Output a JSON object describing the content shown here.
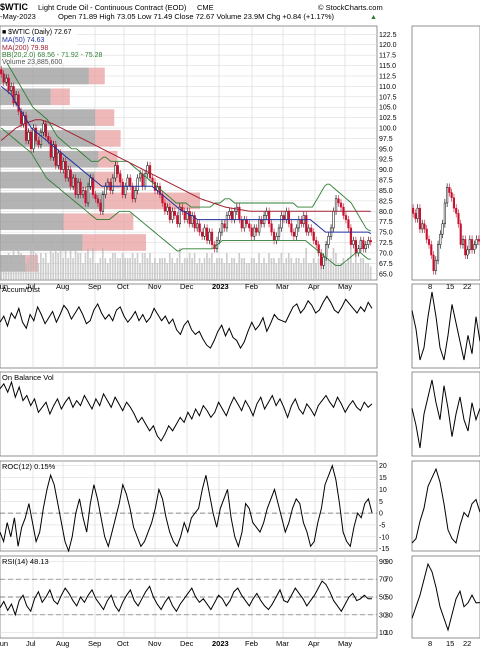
{
  "header": {
    "title_symbol": "$WTIC",
    "title_desc": "Light Crude Oil - Continuous Contract (EOD)",
    "exchange": "CME",
    "watermark": "© StockCharts.com",
    "date": "-May-2023",
    "ohlc": "Open 71.89  High 73.05  Low 71.49  Close 72.67  Volume 23.9M  Chg +0.84 (+1.17%)",
    "last_change": "▲"
  },
  "legend": {
    "price": "■ $WTIC (Daily) 72.67",
    "ma50": "MA(50) 74.63",
    "ma200": "MA(200) 79.98",
    "bb": "BB(20,2.0) 68.56 - 71.92 - 75.28",
    "volume": "Volume 23,885,600"
  },
  "panel_titles": {
    "accdist": "Accum/Dist",
    "obv": "On Balance Vol",
    "roc": "ROC(12) 0.15%",
    "rsi": "RSI(14) 48.13"
  },
  "colors": {
    "up": "#000000",
    "down": "#c8102e",
    "ma50": "#1f2fa0",
    "ma200": "#a02030",
    "bb": "#2e7d32",
    "volume": "#b8b8b8",
    "volume_by_price_up": "#9a9a9a",
    "volume_by_price_down": "#e8a0a0",
    "grid": "#d6d6d6"
  },
  "chart_data": [
    {
      "type": "candlestick",
      "title": "$WTIC Light Crude Oil - Continuous Contract (EOD)",
      "x_ticks": [
        "Jul",
        "Aug",
        "Sep",
        "Oct",
        "Nov",
        "Dec",
        "2023",
        "Feb",
        "Mar",
        "Apr",
        "May"
      ],
      "y_ticks": [
        65.0,
        67.5,
        70.0,
        72.5,
        75.0,
        77.5,
        80.0,
        82.5,
        85.0,
        87.5,
        90.0,
        92.5,
        95.0,
        97.5,
        100.0,
        102.5,
        105.0,
        107.5,
        110.0,
        112.5,
        115.0,
        117.5,
        120.0,
        122.5
      ],
      "ylim": [
        63.5,
        124.5
      ],
      "close": [
        113,
        111,
        112,
        109,
        110,
        106,
        108,
        104,
        101,
        103,
        97,
        99,
        95,
        100,
        97,
        96,
        99,
        101,
        98,
        97,
        93,
        96,
        91,
        94,
        90,
        92,
        88,
        90,
        86,
        88,
        84,
        87,
        84,
        85,
        82,
        86,
        88,
        84,
        83,
        82,
        80,
        84,
        86,
        87,
        85,
        88,
        91,
        89,
        87,
        84,
        86,
        88,
        86,
        83,
        85,
        88,
        89,
        86,
        89,
        91,
        88,
        87,
        85,
        86,
        84,
        82,
        80,
        81,
        78,
        80,
        79,
        77,
        81,
        80,
        78,
        80,
        77,
        79,
        76,
        77,
        75,
        74,
        76,
        73,
        75,
        72,
        71,
        73,
        75,
        77,
        76,
        79,
        80,
        78,
        80,
        81,
        78,
        76,
        78,
        77,
        76,
        74,
        76,
        75,
        78,
        77,
        79,
        80,
        77,
        75,
        73,
        74,
        76,
        79,
        78,
        80,
        77,
        75,
        74,
        76,
        78,
        77,
        79,
        75,
        76,
        75,
        73,
        72,
        70,
        67,
        69,
        72,
        74,
        76,
        80,
        83,
        82,
        81,
        79,
        78,
        76,
        72,
        73,
        70,
        71,
        73,
        71,
        72,
        73,
        72.67
      ],
      "ma50": [
        110,
        109.5,
        109,
        108.5,
        108,
        107,
        106,
        105,
        104,
        103,
        102,
        101,
        100,
        99.5,
        99,
        98.5,
        98,
        97.5,
        97,
        96.5,
        96,
        95.5,
        95,
        94.5,
        94,
        93.5,
        93,
        92.5,
        92,
        91.5,
        91,
        90.5,
        90,
        89.5,
        89,
        88.5,
        88,
        87.5,
        87,
        86.5,
        86,
        86,
        86,
        86,
        86,
        86,
        86,
        86,
        86,
        86,
        86,
        86,
        86,
        86,
        86,
        86,
        86,
        86,
        86,
        86,
        86,
        85.5,
        85,
        84.5,
        84,
        83.5,
        83,
        82.5,
        82,
        81.5,
        81,
        80.5,
        80,
        80,
        79.5,
        79,
        79,
        78.5,
        78,
        78,
        78,
        78,
        78,
        78,
        78,
        78,
        78,
        78,
        78,
        78,
        78,
        78,
        78,
        78,
        78,
        78,
        78,
        78,
        78,
        78,
        78,
        78,
        78,
        78,
        78,
        78,
        78,
        78,
        78,
        78,
        78,
        78,
        78,
        78,
        78,
        78,
        78,
        78,
        78,
        78,
        78,
        78,
        78,
        78,
        77.5,
        77,
        76.5,
        76,
        75.5,
        75,
        75,
        75,
        75,
        75,
        75,
        75,
        75,
        75,
        75,
        75,
        75,
        75,
        75,
        75,
        75,
        75,
        75,
        74.63
      ],
      "ma200": [
        97,
        97.5,
        98,
        98.5,
        99,
        99.5,
        100,
        100.3,
        100.6,
        100.9,
        101.2,
        101.4,
        101.6,
        101.8,
        102,
        102,
        102,
        101.8,
        101.6,
        101.4,
        101.2,
        101,
        100.7,
        100.4,
        100.1,
        99.8,
        99.5,
        99.2,
        98.9,
        98.6,
        98.3,
        98,
        97.7,
        97.4,
        97.1,
        96.8,
        96.5,
        96.2,
        95.9,
        95.6,
        95.3,
        95,
        94.7,
        94.4,
        94.1,
        93.8,
        93.5,
        93.2,
        92.9,
        92.6,
        92.3,
        92,
        91.7,
        91.4,
        91.1,
        90.8,
        90.5,
        90.2,
        89.9,
        89.6,
        89.3,
        89,
        88.7,
        88.4,
        88.1,
        87.8,
        87.5,
        87.2,
        86.9,
        86.6,
        86.3,
        86,
        85.7,
        85.4,
        85.1,
        84.8,
        84.5,
        84.2,
        83.9,
        83.6,
        83.3,
        83,
        82.8,
        82.6,
        82.4,
        82.2,
        82,
        81.8,
        81.6,
        81.4,
        81.2,
        81,
        80.9,
        80.8,
        80.7,
        80.6,
        80.5,
        80.4,
        80.3,
        80.2,
        80.1,
        80,
        80,
        80,
        80,
        80,
        80,
        80,
        80,
        80,
        80,
        80,
        80,
        80,
        80,
        80,
        80,
        80,
        80,
        80,
        80,
        80,
        80,
        80,
        80,
        80,
        80,
        80,
        80,
        80,
        80,
        80,
        80,
        80,
        80,
        80,
        80,
        80,
        80,
        80,
        80,
        80,
        80,
        80,
        80,
        80,
        80,
        80,
        80,
        80,
        79.98
      ],
      "bb_upper": [
        118,
        117,
        116,
        115,
        114,
        113,
        112,
        111,
        110,
        109,
        108,
        107,
        106,
        105,
        104.5,
        104,
        103.5,
        103,
        102.5,
        102,
        101,
        100,
        99,
        98,
        97.5,
        97,
        96.5,
        96,
        95.5,
        95,
        95,
        95,
        94.5,
        94,
        93.5,
        93,
        92.5,
        92,
        92,
        92,
        92,
        92.5,
        93,
        93,
        92.5,
        92,
        92,
        92,
        92,
        92,
        92,
        92,
        92,
        91.5,
        91,
        90.5,
        90,
        89.5,
        89,
        88.5,
        88,
        87.5,
        87,
        86.5,
        86,
        85.5,
        85,
        84.5,
        84,
        83.5,
        83,
        82.5,
        82,
        82,
        82,
        82,
        82,
        81.5,
        81,
        81,
        81,
        81,
        81,
        81,
        81,
        81,
        81,
        81.5,
        82,
        82,
        82,
        82.5,
        83,
        83,
        83,
        82.5,
        82,
        82,
        82,
        82,
        82,
        82,
        82,
        82,
        82,
        82,
        82,
        82,
        82,
        82,
        82,
        82,
        82,
        82,
        82,
        82,
        82,
        82,
        82,
        82,
        82,
        81.5,
        81,
        81,
        81,
        81,
        81,
        81,
        81,
        82,
        83,
        84,
        85,
        86,
        86.5,
        86.5,
        86,
        85.5,
        85,
        84.5,
        84,
        83.5,
        83,
        82.5,
        82,
        81,
        80,
        79,
        78,
        77,
        76,
        75.5,
        75.28
      ],
      "bb_lower": [
        100,
        99.5,
        99,
        98.5,
        98,
        97.5,
        97,
        96.5,
        96,
        95.5,
        95,
        94.5,
        94,
        93,
        92,
        91,
        90,
        89,
        88,
        87.5,
        87,
        86.5,
        86,
        85.5,
        85,
        84.5,
        84,
        83.5,
        83,
        82.5,
        82,
        81.5,
        81,
        80.5,
        80,
        79.5,
        79,
        78.5,
        78,
        78,
        78,
        78,
        78,
        78,
        78.5,
        79,
        79.5,
        80,
        80,
        80,
        80,
        80,
        79.5,
        79,
        78.5,
        78,
        77.5,
        77,
        76.5,
        76,
        75.5,
        75,
        74.5,
        74,
        73.5,
        73,
        72.5,
        72,
        71.5,
        71,
        70.5,
        70.5,
        71,
        71,
        71,
        71,
        71,
        71,
        71,
        71,
        71,
        71,
        71,
        71,
        71,
        71.5,
        72,
        72.5,
        73,
        73,
        73,
        73,
        73,
        73,
        73,
        73,
        73,
        73,
        73,
        73,
        73,
        73,
        73,
        73,
        73,
        73,
        73,
        73,
        73,
        73,
        73,
        73,
        73,
        73,
        73,
        73,
        73,
        73,
        73,
        73,
        73,
        73,
        72.5,
        72,
        71.5,
        71,
        70.5,
        70,
        69.5,
        69,
        68.5,
        68,
        67.5,
        67,
        67,
        67,
        67.5,
        68,
        68.5,
        69,
        69.5,
        70,
        70,
        70,
        69.5,
        69,
        68.5,
        68.56
      ],
      "volume_by_price": [
        {
          "price_from": 110,
          "price_to": 115,
          "up": 140,
          "down": 25
        },
        {
          "price_from": 105,
          "price_to": 110,
          "up": 80,
          "down": 30
        },
        {
          "price_from": 100,
          "price_to": 105,
          "up": 150,
          "down": 30
        },
        {
          "price_from": 95,
          "price_to": 100,
          "up": 150,
          "down": 40
        },
        {
          "price_from": 90,
          "price_to": 95,
          "up": 155,
          "down": 30
        },
        {
          "price_from": 85,
          "price_to": 90,
          "up": 150,
          "down": 40
        },
        {
          "price_from": 80,
          "price_to": 85,
          "up": 165,
          "down": 150
        },
        {
          "price_from": 75,
          "price_to": 80,
          "up": 100,
          "down": 110
        },
        {
          "price_from": 70,
          "price_to": 75,
          "up": 130,
          "down": 100
        },
        {
          "price_from": 65,
          "price_to": 70,
          "up": 40,
          "down": 20
        }
      ]
    },
    {
      "type": "line",
      "title": "Accum/Dist",
      "values": [
        60,
        68,
        55,
        72,
        65,
        78,
        60,
        52,
        70,
        62,
        80,
        70,
        58,
        66,
        74,
        60,
        70,
        82,
        76,
        64,
        72,
        80,
        70,
        58,
        62,
        76,
        84,
        72,
        64,
        70,
        62,
        76,
        80,
        68,
        60,
        66,
        74,
        62,
        70,
        60,
        66,
        78,
        70,
        62,
        68,
        58,
        64,
        50,
        44,
        56,
        62,
        50,
        44,
        48,
        38,
        30,
        26,
        36,
        48,
        56,
        42,
        52,
        40,
        36,
        26,
        34,
        48,
        60,
        50,
        56,
        66,
        48,
        58,
        70,
        64,
        62,
        60,
        70,
        80,
        84,
        72,
        78,
        88,
        82,
        72,
        76,
        86,
        94,
        86,
        76,
        72,
        80,
        90,
        84,
        78,
        72,
        80,
        74,
        86,
        78
      ],
      "ylim": [
        0,
        110
      ]
    },
    {
      "type": "line",
      "title": "On Balance Vol",
      "values": [
        80,
        86,
        76,
        88,
        70,
        82,
        66,
        72,
        60,
        68,
        52,
        58,
        64,
        50,
        60,
        68,
        56,
        64,
        70,
        58,
        66,
        60,
        72,
        64,
        56,
        68,
        60,
        74,
        66,
        58,
        70,
        62,
        54,
        64,
        58,
        50,
        40,
        46,
        38,
        30,
        36,
        24,
        18,
        26,
        36,
        30,
        38,
        46,
        40,
        52,
        44,
        56,
        48,
        60,
        54,
        46,
        52,
        64,
        56,
        48,
        60,
        70,
        62,
        54,
        66,
        58,
        48,
        62,
        70,
        56,
        64,
        72,
        60,
        68,
        58,
        46,
        60,
        68,
        56,
        50,
        62,
        56,
        48,
        60,
        66,
        72,
        64,
        58,
        70,
        62,
        52,
        60,
        66,
        58,
        54,
        64,
        58,
        62
      ],
      "ylim": [
        0,
        100
      ]
    },
    {
      "type": "line",
      "title": "ROC(12) 0.15%",
      "y_ticks": [
        -15,
        -10,
        -5,
        0,
        5,
        10,
        15,
        20
      ],
      "ylim": [
        -16,
        22
      ],
      "values": [
        -8,
        -12,
        -4,
        -10,
        -2,
        -14,
        -6,
        -2,
        4,
        -4,
        -12,
        -8,
        2,
        10,
        16,
        12,
        4,
        -4,
        -12,
        -16,
        -10,
        0,
        6,
        -2,
        -8,
        4,
        12,
        6,
        -2,
        -10,
        -14,
        -8,
        -2,
        4,
        12,
        8,
        2,
        -6,
        -10,
        -14,
        -12,
        -8,
        -4,
        2,
        10,
        6,
        -2,
        -8,
        -12,
        -14,
        -10,
        -4,
        -8,
        -2,
        0,
        2,
        10,
        16,
        8,
        0,
        -6,
        2,
        6,
        10,
        -2,
        -10,
        -14,
        -8,
        4,
        2,
        -4,
        -6,
        -8,
        -4,
        2,
        6,
        10,
        4,
        -2,
        -8,
        -4,
        2,
        6,
        4,
        -4,
        -8,
        -14,
        -12,
        -4,
        2,
        12,
        16,
        20,
        14,
        4,
        -8,
        -12,
        -14,
        -6,
        0,
        -2,
        4,
        6,
        0.15
      ]
    },
    {
      "type": "line",
      "title": "RSI(14) 48.13",
      "y_ticks": [
        10,
        30,
        50,
        70,
        90
      ],
      "ylim": [
        4,
        96
      ],
      "values": [
        38,
        45,
        35,
        42,
        30,
        46,
        52,
        40,
        34,
        48,
        56,
        44,
        50,
        58,
        46,
        42,
        52,
        60,
        54,
        46,
        40,
        50,
        44,
        52,
        58,
        48,
        42,
        36,
        46,
        52,
        40,
        34,
        44,
        52,
        58,
        46,
        40,
        48,
        56,
        62,
        50,
        42,
        36,
        44,
        50,
        40,
        34,
        42,
        48,
        54,
        60,
        50,
        44,
        48,
        42,
        36,
        44,
        52,
        48,
        40,
        46,
        56,
        60,
        52,
        46,
        40,
        48,
        54,
        46,
        40,
        36,
        42,
        50,
        58,
        46,
        44,
        52,
        60,
        54,
        48,
        40,
        46,
        52,
        60,
        68,
        64,
        56,
        46,
        40,
        34,
        42,
        50,
        54,
        46,
        48,
        52,
        48,
        48.13
      ]
    }
  ],
  "x_axis_labels": [
    "Jun",
    "Jul",
    "Aug",
    "Sep",
    "Oct",
    "Nov",
    "Dec",
    "2023",
    "Feb",
    "Mar",
    "Apr",
    "May"
  ],
  "mini_x_labels": [
    "8",
    "15",
    "22"
  ],
  "mini_y_labels": [
    "10",
    "30",
    "50",
    "70",
    "90"
  ]
}
